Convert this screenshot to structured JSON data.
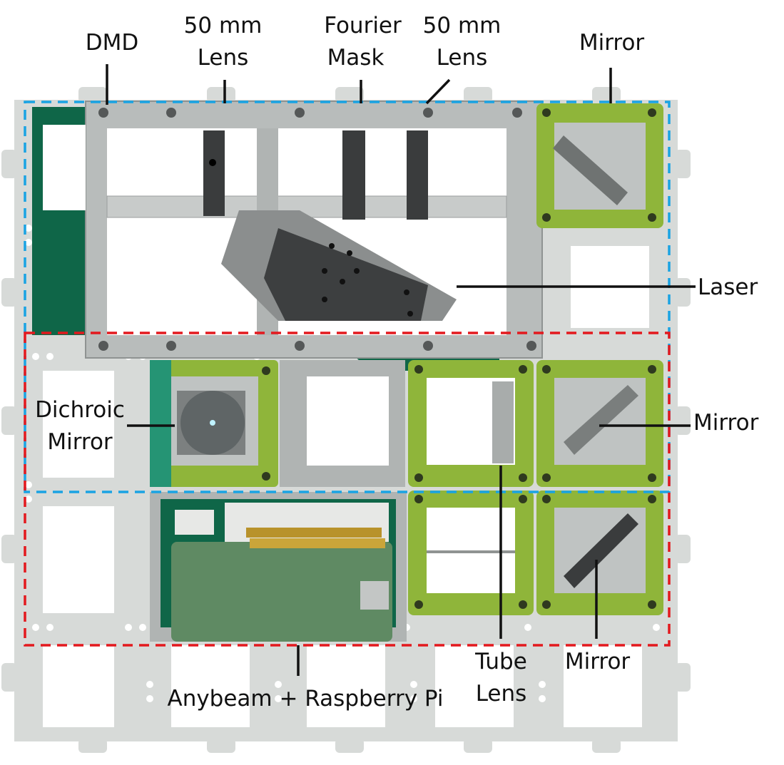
{
  "colors": {
    "plate": "#d7dad8",
    "plate_edge": "#c4c8c6",
    "pcb_dark": "#0f6648",
    "board_green": "#5f8a63",
    "cube_green": "#8fb53a",
    "cube_teal": "#259474",
    "rail": "#b8bcbb",
    "rail_dark": "#8f9392",
    "black_part": "#3a3c3d",
    "leader": "#111111",
    "blue_dash": "#1aa3e3",
    "red_dash": "#e3191e"
  },
  "labels": {
    "dmd": "DMD",
    "lens1_l1": "50 mm",
    "lens1_l2": "Lens",
    "fourier_l1": "Fourier",
    "fourier_l2": "Mask",
    "lens2_l1": "50 mm",
    "lens2_l2": "Lens",
    "mirror_top": "Mirror",
    "laser": "Laser",
    "dichroic_l1": "Dichroic",
    "dichroic_l2": "Mirror",
    "mirror_right": "Mirror",
    "tube_l1": "Tube",
    "tube_l2": "Lens",
    "mirror_bottom": "Mirror",
    "anybeam": "Anybeam + Raspberry Pi"
  }
}
